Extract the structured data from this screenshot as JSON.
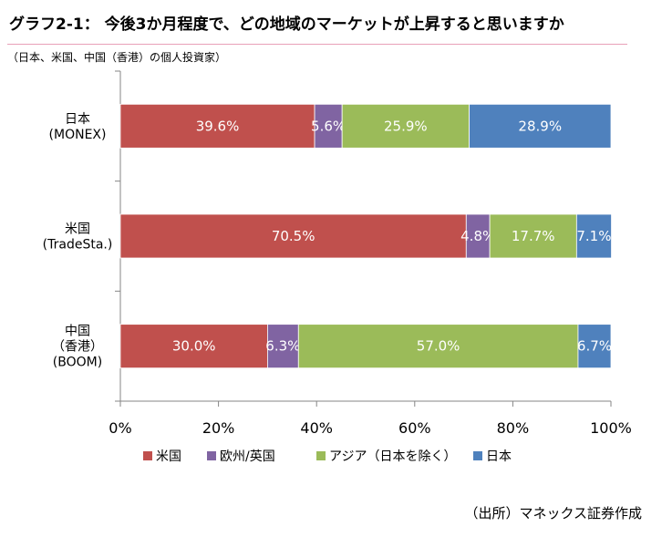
{
  "header": {
    "title": "グラフ2-1： 今後3か月程度で、どの地域のマーケットが上昇すると思いますか",
    "subtitle": "（日本、米国、中国（香港）の個人投資家）"
  },
  "source": "（出所）マネックス証券作成",
  "chart_data": {
    "type": "bar",
    "orientation": "horizontal",
    "stacked": true,
    "percent_stacked": true,
    "categories": [
      [
        "日本",
        "(MONEX)"
      ],
      [
        "米国",
        "(TradeSta.)"
      ],
      [
        "中国",
        "（香港）",
        "(BOOM)"
      ]
    ],
    "series": [
      {
        "name": "米国",
        "color": "#c0504d",
        "values": [
          39.6,
          70.5,
          30.0
        ],
        "labels": [
          "39.6%",
          "70.5%",
          "30.0%"
        ]
      },
      {
        "name": "欧州/英国",
        "color": "#8064a2",
        "values": [
          5.6,
          4.8,
          6.3
        ],
        "labels": [
          "5.6%",
          "4.8%",
          "6.3%"
        ]
      },
      {
        "name": "アジア（日本を除く）",
        "color": "#9bbb59",
        "values": [
          25.9,
          17.7,
          57.0
        ],
        "labels": [
          "25.9%",
          "17.7%",
          "57.0%"
        ]
      },
      {
        "name": "日本",
        "color": "#4f81bd",
        "values": [
          28.9,
          7.1,
          6.7
        ],
        "labels": [
          "28.9%",
          "7.1%",
          "6.7%"
        ]
      }
    ],
    "xlim": [
      0,
      100
    ],
    "xticks": [
      "0%",
      "20%",
      "40%",
      "60%",
      "80%",
      "100%"
    ],
    "legend": "bottom",
    "grid": false
  }
}
